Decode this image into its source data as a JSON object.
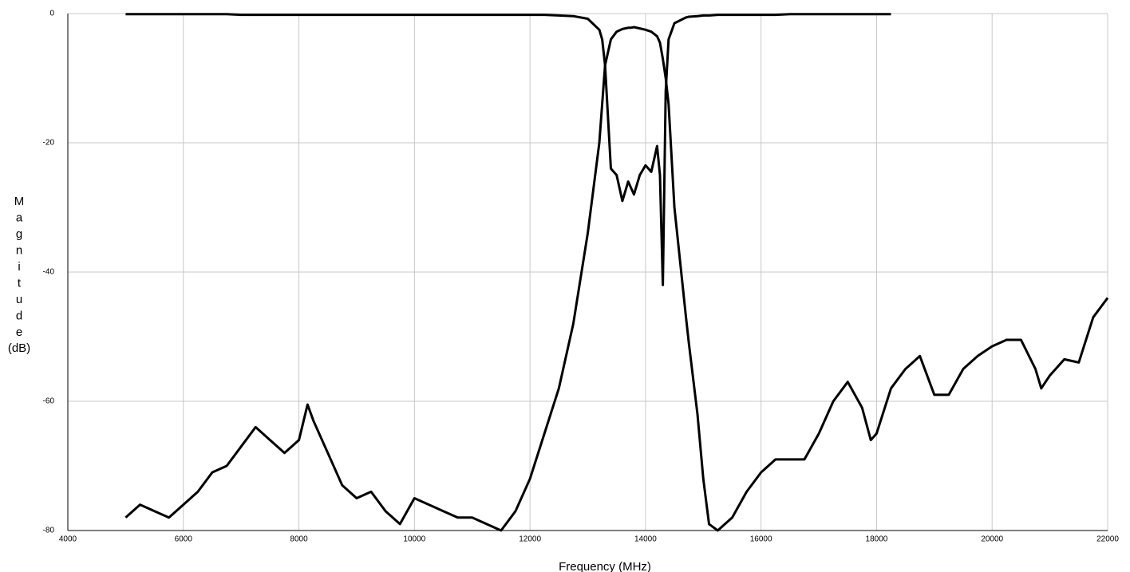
{
  "chart_data": {
    "type": "line",
    "xlabel": "Frequency (MHz)",
    "ylabel": "Magnitude",
    "yunit": "(dB)",
    "x": [
      5000,
      5250,
      5500,
      5750,
      6000,
      6250,
      6500,
      6750,
      7000,
      7250,
      7500,
      7750,
      8000,
      8150,
      8250,
      8500,
      8750,
      9000,
      9250,
      9500,
      9750,
      10000,
      10250,
      10500,
      10750,
      11000,
      11250,
      11500,
      11750,
      12000,
      12250,
      12500,
      12750,
      13000,
      13200,
      13250,
      13300,
      13400,
      13500,
      13600,
      13700,
      13750,
      13800,
      13900,
      14000,
      14100,
      14200,
      14250,
      14300,
      14350,
      14400,
      14500,
      14700,
      14750,
      14900,
      15000,
      15100,
      15250,
      15500,
      15750,
      16000,
      16250,
      16500,
      16750,
      17000,
      17250,
      17500,
      17750,
      17900,
      18000,
      18250,
      18500,
      18750,
      19000,
      19250,
      19500,
      19750,
      20000,
      20250,
      20500,
      20750,
      20850,
      21000,
      21250,
      21500,
      21750,
      22000
    ],
    "series": [
      {
        "color": "#000000",
        "values": [
          -78,
          -76,
          -77,
          -78,
          -76,
          -74,
          -71,
          -70,
          -67,
          -64,
          -66,
          -68,
          -66,
          -60.5,
          -63,
          -68,
          -73,
          -75,
          -74,
          -77,
          -79,
          -75,
          -76,
          -77,
          -78,
          -78,
          -79,
          -80,
          -77,
          -72,
          -65,
          -58,
          -48,
          -34,
          -20,
          -14,
          -8,
          -4,
          -2.8,
          -2.4,
          -2.2,
          -2.2,
          -2.1,
          -2.3,
          -2.5,
          -2.8,
          -3.5,
          -4.5,
          -7,
          -10,
          -14,
          -30,
          -47,
          -51,
          -62,
          -72,
          -79,
          -80,
          -78,
          -74,
          -71,
          -69,
          -69,
          -69,
          -65,
          -60,
          -57,
          -61,
          -66,
          -65,
          -58,
          -55,
          -53,
          -59,
          -59,
          -55,
          -53,
          -51.5,
          -50.5,
          -50.5,
          -55,
          -58,
          -56,
          -53.5,
          -54,
          -47,
          -44
        ]
      },
      {
        "color": "#000000",
        "values": [
          -0.1,
          -0.1,
          -0.1,
          -0.1,
          -0.1,
          -0.1,
          -0.1,
          -0.1,
          -0.2,
          -0.2,
          -0.2,
          -0.2,
          -0.2,
          -0.2,
          -0.2,
          -0.2,
          -0.2,
          -0.2,
          -0.2,
          -0.2,
          -0.2,
          -0.2,
          -0.2,
          -0.2,
          -0.2,
          -0.2,
          -0.2,
          -0.2,
          -0.2,
          -0.2,
          -0.2,
          -0.3,
          -0.4,
          -0.8,
          -2.5,
          -4,
          -8,
          -24,
          -25,
          -29,
          -26,
          -27,
          -28,
          -25,
          -23.5,
          -24.5,
          -20.5,
          -25,
          -42,
          -12,
          -4,
          -1.5,
          -0.6,
          -0.5,
          -0.4,
          -0.3,
          -0.3,
          -0.2,
          -0.2,
          -0.2,
          -0.2,
          -0.2,
          -0.1,
          -0.1,
          -0.1,
          -0.1,
          -0.1,
          -0.1,
          -0.1,
          -0.1,
          -0.1,
          null,
          null,
          null,
          null,
          null,
          null,
          null,
          null,
          null,
          null,
          null,
          null,
          null,
          null,
          null,
          null
        ]
      }
    ],
    "xlim": [
      4000,
      22000
    ],
    "ylim": [
      -80,
      0
    ],
    "xticks": [
      4000,
      6000,
      8000,
      10000,
      12000,
      14000,
      16000,
      18000,
      20000,
      22000
    ],
    "yticks": [
      0,
      -20,
      -40,
      -60,
      -80
    ],
    "grid": true
  }
}
